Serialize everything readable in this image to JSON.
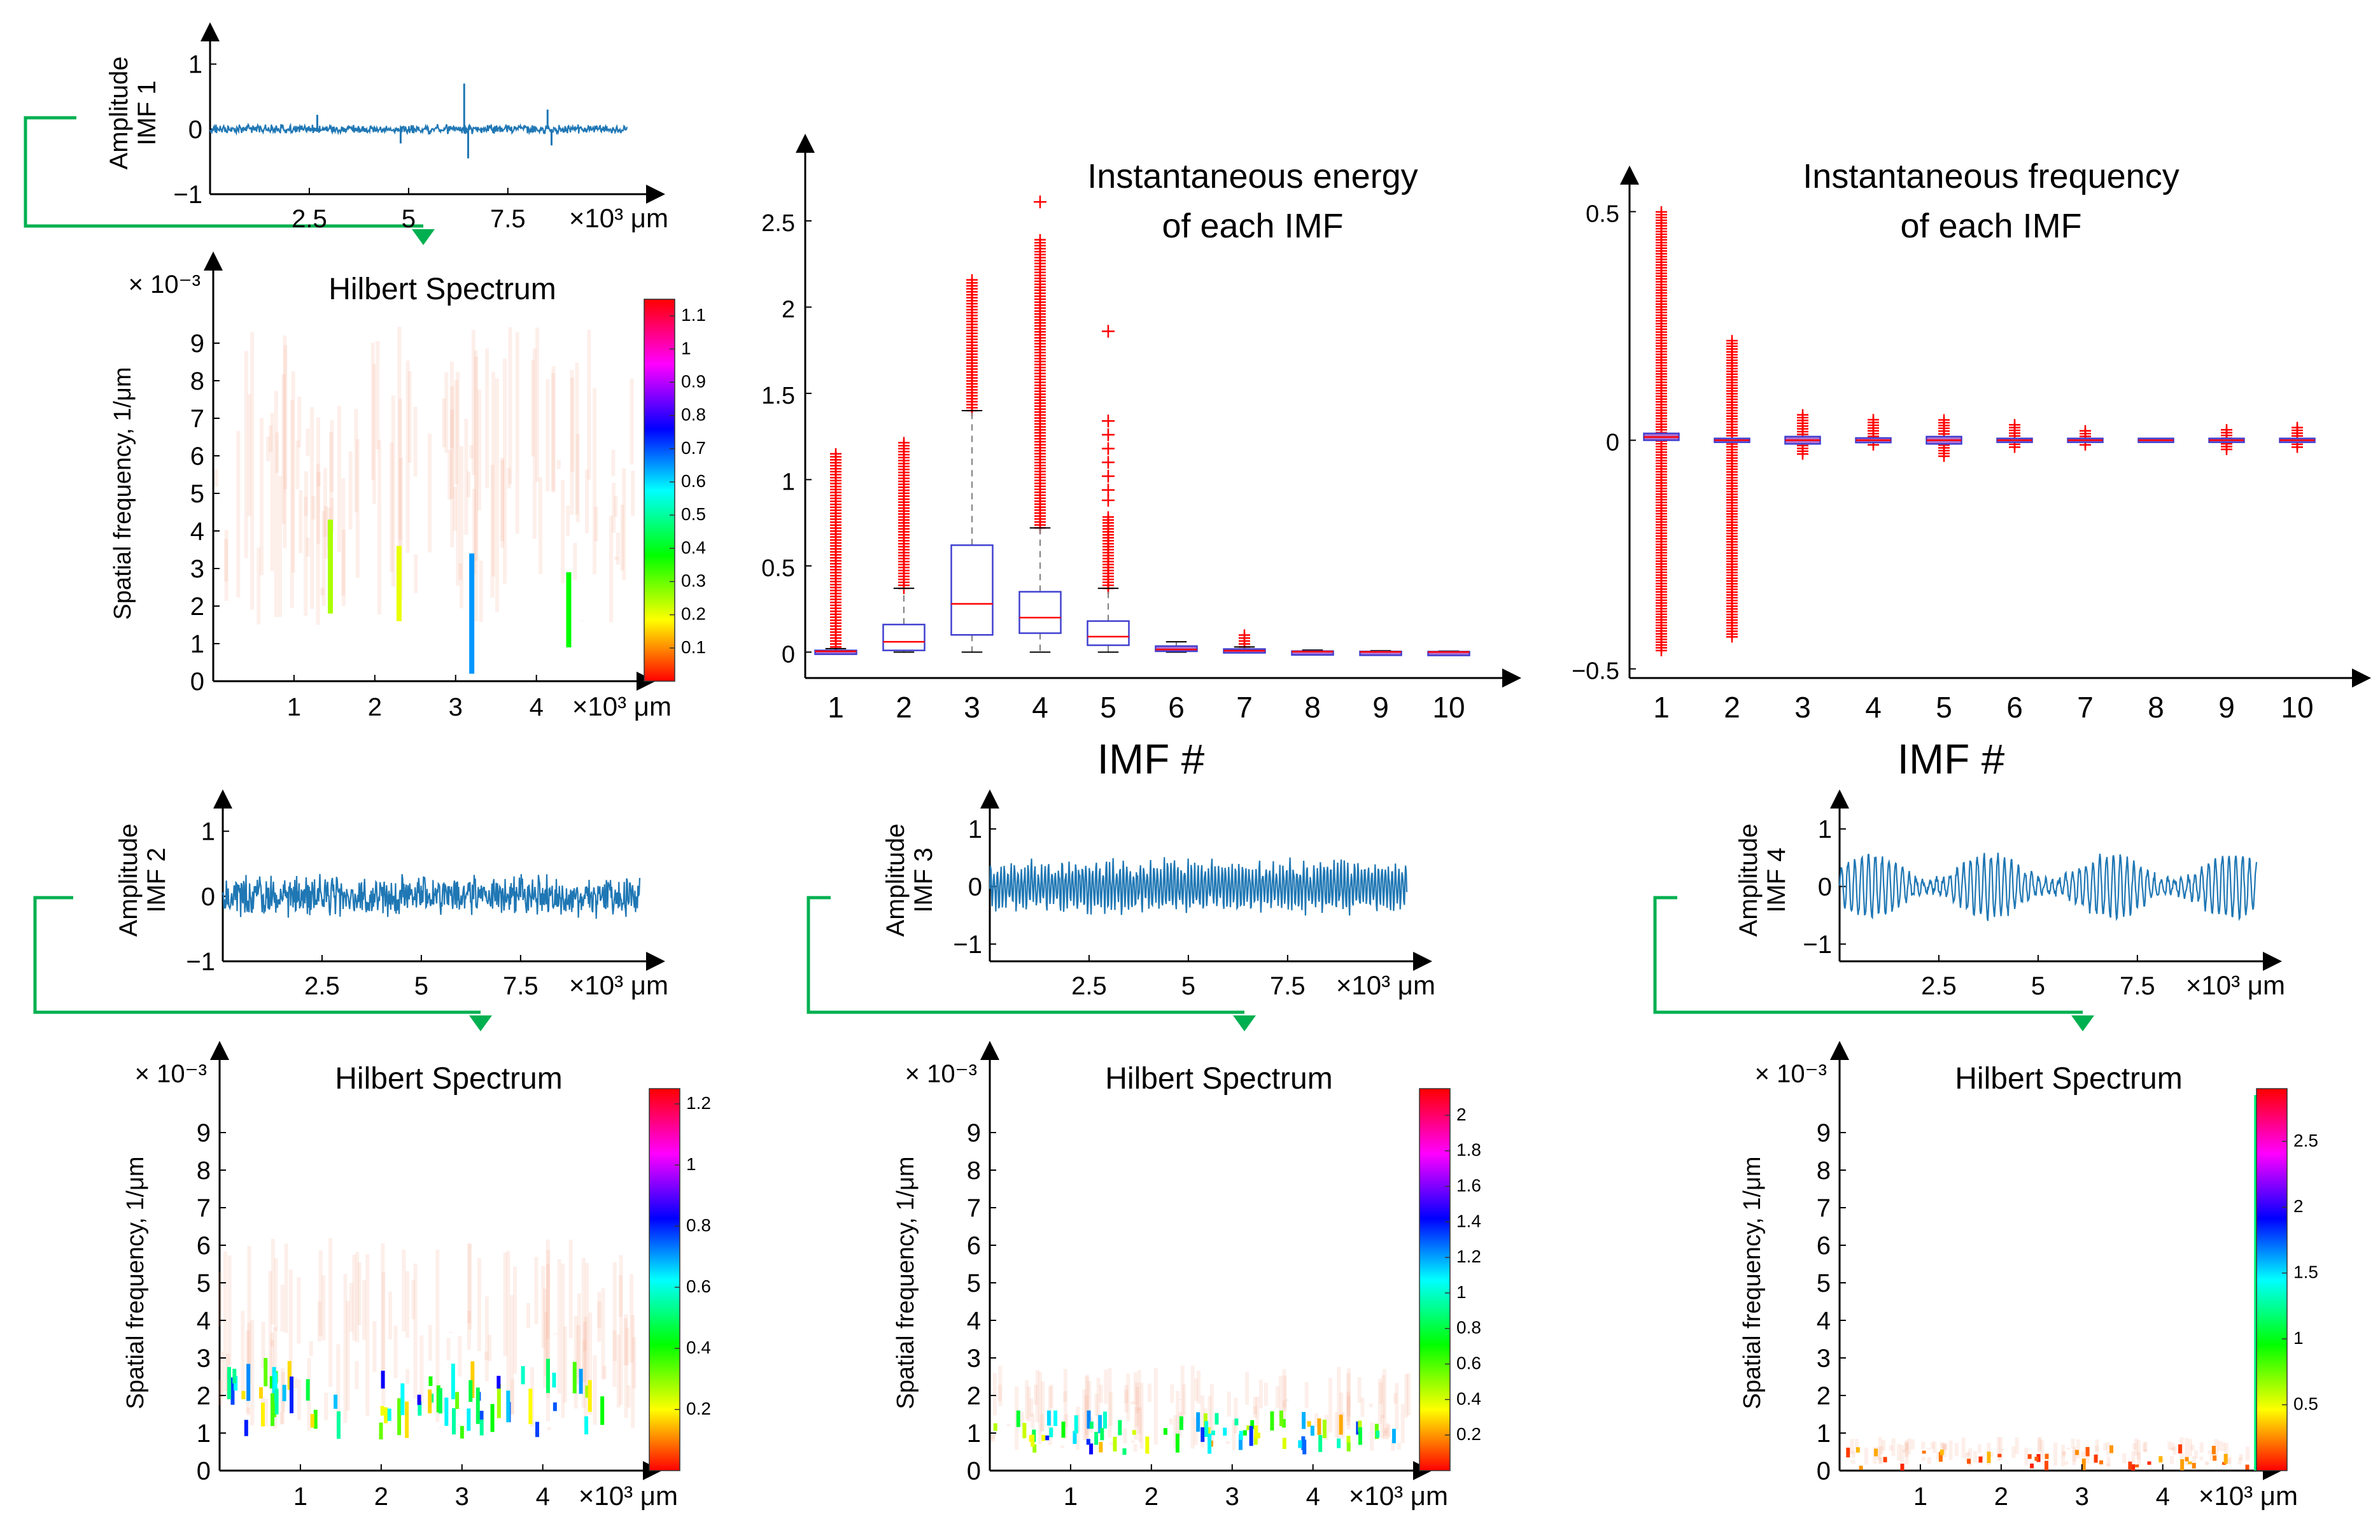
{
  "colors": {
    "signal": "#1f77b4",
    "arrow": "#00b050",
    "box": "#4040d0",
    "median": "#ff0000",
    "outlier": "#ff0000",
    "whisker": "#7f7f7f"
  },
  "chart_data": [
    {
      "id": "imf1",
      "type": "line",
      "ylabel": "Amplitude\nIMF 1",
      "x_ticks": [
        "2.5",
        "5",
        "7.5"
      ],
      "x_unit": "×10³ μm",
      "y_ticks": [
        "1",
        "0",
        "−1"
      ],
      "xlim": [
        0,
        10.5
      ],
      "ylim": [
        -1,
        1.3
      ],
      "envelope": 0.08,
      "spikes": [
        {
          "x": 6.4,
          "y": 0.7
        },
        {
          "x": 6.5,
          "y": -0.45
        },
        {
          "x": 8.5,
          "y": 0.3
        },
        {
          "x": 8.6,
          "y": -0.25
        },
        {
          "x": 2.7,
          "y": 0.22
        },
        {
          "x": 4.8,
          "y": -0.22
        }
      ]
    },
    {
      "id": "hs1",
      "type": "heatmap",
      "title": "Hilbert Spectrum",
      "ylabel": "Spatial frequency, 1/μm",
      "y_exponent": "× 10⁻³",
      "x_ticks": [
        "1",
        "2",
        "3",
        "4"
      ],
      "x_unit": "×10³ μm",
      "y_ticks": [
        "0",
        "1",
        "2",
        "3",
        "4",
        "5",
        "6",
        "7",
        "8",
        "9"
      ],
      "xlim": [
        0,
        5.2
      ],
      "ylim": [
        0,
        10
      ],
      "colorbar_ticks": [
        "0.1",
        "0.2",
        "0.3",
        "0.4",
        "0.5",
        "0.6",
        "0.7",
        "0.8",
        "0.9",
        "1",
        "1.1"
      ],
      "colorbar_range": [
        0,
        1.15
      ],
      "hotspots": [
        {
          "x": 1.45,
          "y0": 1.8,
          "y1": 4.3,
          "v": 0.25
        },
        {
          "x": 2.3,
          "y0": 1.6,
          "y1": 3.6,
          "v": 0.2
        },
        {
          "x": 3.2,
          "y0": 0.2,
          "y1": 3.4,
          "v": 0.65
        },
        {
          "x": 4.4,
          "y0": 0.9,
          "y1": 2.9,
          "v": 0.38
        }
      ],
      "haze": {
        "ymin": 1.5,
        "ymax": 9.5
      }
    },
    {
      "id": "energy",
      "type": "boxplot",
      "title": "Instantaneous energy\nof each IMF",
      "xlabel": "IMF #",
      "categories": [
        "1",
        "2",
        "3",
        "4",
        "5",
        "6",
        "7",
        "8",
        "9",
        "10"
      ],
      "y_ticks": [
        "0",
        "0.5",
        "1",
        "1.5",
        "2",
        "2.5"
      ],
      "ylim": [
        -0.15,
        2.95
      ],
      "boxes": [
        {
          "q1": 0.0,
          "median": 0.005,
          "q3": 0.01,
          "whisk_lo": 0.0,
          "whisk_hi": 0.02,
          "out_lo": 0.03,
          "out_hi": 1.15
        },
        {
          "q1": 0.01,
          "median": 0.06,
          "q3": 0.16,
          "whisk_lo": 0.0,
          "whisk_hi": 0.37,
          "out_lo": 0.37,
          "out_hi": 1.23
        },
        {
          "q1": 0.1,
          "median": 0.28,
          "q3": 0.62,
          "whisk_lo": 0.0,
          "whisk_hi": 1.4,
          "out_lo": 1.4,
          "out_hi": 2.17
        },
        {
          "q1": 0.11,
          "median": 0.2,
          "q3": 0.35,
          "whisk_lo": 0.0,
          "whisk_hi": 0.72,
          "out_lo": 0.72,
          "out_hi": 2.4,
          "extra": [
            2.61
          ]
        },
        {
          "q1": 0.04,
          "median": 0.09,
          "q3": 0.18,
          "whisk_lo": 0.0,
          "whisk_hi": 0.37,
          "out_lo": 0.37,
          "out_hi": 0.8,
          "extra": [
            0.88,
            0.94,
            1.02,
            1.1,
            1.18,
            1.26,
            1.34,
            1.86
          ]
        },
        {
          "q1": 0.005,
          "median": 0.015,
          "q3": 0.035,
          "whisk_lo": 0.0,
          "whisk_hi": 0.06,
          "out_lo": 0.06,
          "out_hi": 0.06
        },
        {
          "q1": 0.002,
          "median": 0.008,
          "q3": 0.018,
          "whisk_lo": 0.0,
          "whisk_hi": 0.03,
          "out_lo": 0.03,
          "out_hi": 0.11
        },
        {
          "q1": 0.0,
          "median": 0.003,
          "q3": 0.006,
          "whisk_lo": 0.0,
          "whisk_hi": 0.012,
          "out_lo": 0.012,
          "out_hi": 0.02
        },
        {
          "q1": 0.0,
          "median": 0.002,
          "q3": 0.004,
          "whisk_lo": 0.0,
          "whisk_hi": 0.008,
          "out_lo": 0.008,
          "out_hi": 0.012
        },
        {
          "q1": 0.0,
          "median": 0.001,
          "q3": 0.003,
          "whisk_lo": 0.0,
          "whisk_hi": 0.006,
          "out_lo": 0.006,
          "out_hi": 0.01
        }
      ]
    },
    {
      "id": "frequency",
      "type": "boxplot",
      "title": "Instantaneous frequency\nof each IMF",
      "xlabel": "IMF #",
      "categories": [
        "1",
        "2",
        "3",
        "4",
        "5",
        "6",
        "7",
        "8",
        "9",
        "10"
      ],
      "y_ticks": [
        "−0.5",
        "0",
        "0.5"
      ],
      "y_tick_values": [
        -0.5,
        0,
        0.5
      ],
      "ylim": [
        -0.52,
        0.58
      ],
      "boxes": [
        {
          "q1": 0.0,
          "median": 0.007,
          "q3": 0.015,
          "out_lo": -0.46,
          "out_hi": 0.5
        },
        {
          "q1": -0.004,
          "median": 0.0,
          "q3": 0.004,
          "out_lo": -0.43,
          "out_hi": 0.22
        },
        {
          "q1": -0.008,
          "median": 0.0,
          "q3": 0.008,
          "out_lo": -0.03,
          "out_hi": 0.06
        },
        {
          "q1": -0.005,
          "median": 0.0,
          "q3": 0.005,
          "out_lo": -0.01,
          "out_hi": 0.045
        },
        {
          "q1": -0.008,
          "median": 0.0,
          "q3": 0.008,
          "out_lo": -0.035,
          "out_hi": 0.05
        },
        {
          "q1": -0.004,
          "median": 0.0,
          "q3": 0.004,
          "out_lo": -0.015,
          "out_hi": 0.035
        },
        {
          "q1": -0.004,
          "median": 0.0,
          "q3": 0.004,
          "out_lo": -0.01,
          "out_hi": 0.025
        },
        {
          "q1": -0.004,
          "median": 0.0,
          "q3": 0.004,
          "out_lo": -0.02,
          "out_hi": 0.02
        },
        {
          "q1": -0.004,
          "median": 0.0,
          "q3": 0.004,
          "out_lo": -0.02,
          "out_hi": 0.025
        },
        {
          "q1": -0.004,
          "median": 0.0,
          "q3": 0.004,
          "out_lo": -0.015,
          "out_hi": 0.03
        }
      ]
    },
    {
      "id": "imf2",
      "type": "line",
      "ylabel": "Amplitude\nIMF 2",
      "x_ticks": [
        "2.5",
        "5",
        "7.5"
      ],
      "x_unit": "×10³ μm",
      "y_ticks": [
        "1",
        "0",
        "−1"
      ],
      "xlim": [
        0,
        10.5
      ],
      "ylim": [
        -1,
        1.3
      ],
      "envelope": 0.38
    },
    {
      "id": "imf3",
      "type": "line",
      "ylabel": "Amplitude\nIMF 3",
      "x_ticks": [
        "2.5",
        "5",
        "7.5"
      ],
      "x_unit": "×10³ μm",
      "y_ticks": [
        "1",
        "0",
        "−1"
      ],
      "xlim": [
        0,
        10.5
      ],
      "ylim": [
        -1.3,
        1.3
      ],
      "envelope": 0.45
    },
    {
      "id": "imf4",
      "type": "line",
      "ylabel": "Amplitude\nIMF 4",
      "x_ticks": [
        "2.5",
        "5",
        "7.5"
      ],
      "x_unit": "×10³ μm",
      "y_ticks": [
        "1",
        "0",
        "−1"
      ],
      "xlim": [
        0,
        10.5
      ],
      "ylim": [
        -1.3,
        1.3
      ],
      "envelope": 0.55
    },
    {
      "id": "hs2",
      "type": "heatmap",
      "title": "Hilbert Spectrum",
      "ylabel": "Spatial frequency, 1/μm",
      "y_exponent": "× 10⁻³",
      "x_ticks": [
        "1",
        "2",
        "3",
        "4"
      ],
      "x_unit": "×10³ μm",
      "y_ticks": [
        "0",
        "1",
        "2",
        "3",
        "4",
        "5",
        "6",
        "7",
        "8",
        "9"
      ],
      "xlim": [
        0,
        5.2
      ],
      "ylim": [
        0,
        10
      ],
      "colorbar_ticks": [
        "0.2",
        "0.4",
        "0.6",
        "0.8",
        "1",
        "1.2"
      ],
      "colorbar_range": [
        0,
        1.25
      ],
      "band": {
        "ymin": 0.8,
        "ymax": 3.0,
        "count": 70,
        "vmax": 0.85
      },
      "haze": {
        "ymin": 1.0,
        "ymax": 6.2
      }
    },
    {
      "id": "hs3",
      "type": "heatmap",
      "title": "Hilbert Spectrum",
      "ylabel": "Spatial frequency, 1/μm",
      "y_exponent": "× 10⁻³",
      "x_ticks": [
        "1",
        "2",
        "3",
        "4"
      ],
      "x_unit": "×10³ μm",
      "y_ticks": [
        "0",
        "1",
        "2",
        "3",
        "4",
        "5",
        "6",
        "7",
        "8",
        "9"
      ],
      "xlim": [
        0,
        5.2
      ],
      "ylim": [
        0,
        10
      ],
      "colorbar_ticks": [
        "0.2",
        "0.4",
        "0.6",
        "0.8",
        "1",
        "1.2",
        "1.4",
        "1.6",
        "1.8",
        "2"
      ],
      "colorbar_range": [
        0,
        2.15
      ],
      "band": {
        "ymin": 0.4,
        "ymax": 1.6,
        "count": 75,
        "vmax": 1.45
      },
      "haze": {
        "ymin": 0.5,
        "ymax": 2.8
      }
    },
    {
      "id": "hs4",
      "type": "heatmap",
      "title": "Hilbert Spectrum",
      "ylabel": "Spatial frequency, 1/μm",
      "y_exponent": "× 10⁻³",
      "x_ticks": [
        "1",
        "2",
        "3",
        "4"
      ],
      "x_unit": "×10³ μm",
      "y_ticks": [
        "0",
        "1",
        "2",
        "3",
        "4",
        "5",
        "6",
        "7",
        "8",
        "9"
      ],
      "xlim": [
        0,
        5.2
      ],
      "ylim": [
        0,
        10
      ],
      "colorbar_ticks": [
        "0.5",
        "1",
        "1.5",
        "2",
        "2.5"
      ],
      "colorbar_range": [
        0,
        2.9
      ],
      "band": {
        "ymin": 0.0,
        "ymax": 0.7,
        "count": 40,
        "vmax": 0.35
      },
      "haze": {
        "ymin": 0.1,
        "ymax": 0.9
      },
      "edge_line": {
        "x": 5.15,
        "y0": 0,
        "y1": 10,
        "v": 1.2
      }
    }
  ]
}
